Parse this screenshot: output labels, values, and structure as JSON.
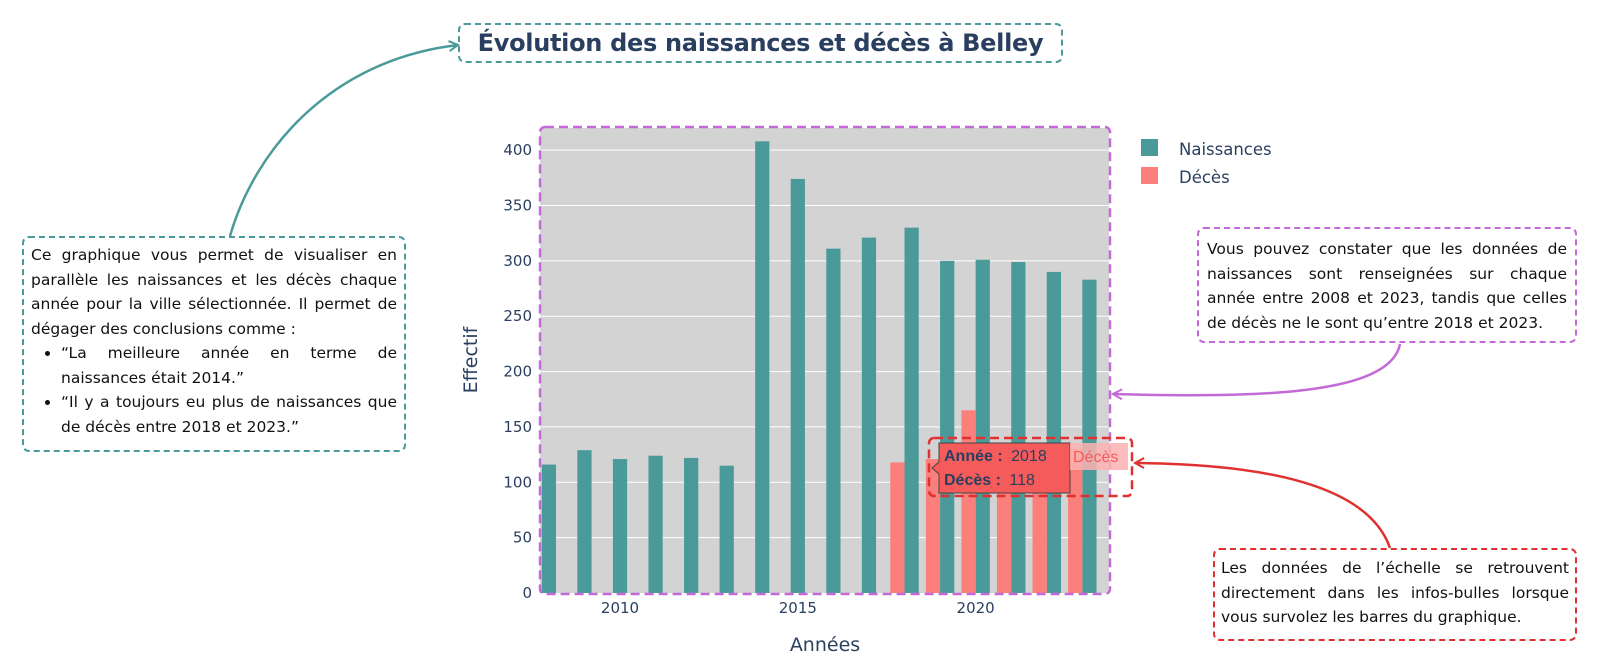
{
  "title": "Évolution des naissances et décès à Belley",
  "annotations": {
    "left": {
      "text": "Ce graphique vous permet de visualiser en parallèle les naissances et les décès chaque année pour la ville sélectionnée. Il permet de dégager des conclusions comme :",
      "bullets": [
        "“La meilleure année en terme de naissances était 2014.”",
        "“Il y a toujours eu plus de naissances que de décès entre 2018 et 2023.”"
      ]
    },
    "right_top": "Vous pouvez constater que les données de naissances sont renseignées sur chaque année entre 2008 et 2023, tandis que celles de décès ne le sont qu’entre 2018 et 2023.",
    "right_bottom": "Les données de l’échelle se retrouvent directement dans les infos-bulles lorsque vous survolez les barres du graphique."
  },
  "tooltip": {
    "year_label": "Année :",
    "year_value": "2018",
    "deaths_label": "Décès :",
    "deaths_value": "118",
    "series_tag": "Décès"
  },
  "colors": {
    "naissances": "#4a9a9a",
    "deces": "#fb7f7a",
    "plot_bg": "#d3d3d3",
    "teal_annotation": "#4a9a9a",
    "purple_annotation": "#c46ad8",
    "red_annotation": "#e03030",
    "tooltip_bg": "#f55b5b"
  },
  "chart_data": {
    "type": "bar",
    "xlabel": "Années",
    "ylabel": "Effectif",
    "xlim": [
      2007.75,
      2023.75
    ],
    "ylim": [
      0,
      420
    ],
    "yticks": [
      0,
      50,
      100,
      150,
      200,
      250,
      300,
      350,
      400
    ],
    "xticks": [
      2010,
      2015,
      2020
    ],
    "grid": true,
    "legend_position": "top-right",
    "series": [
      {
        "name": "Naissances",
        "x": [
          2008,
          2009,
          2010,
          2011,
          2012,
          2013,
          2014,
          2015,
          2016,
          2017,
          2018,
          2019,
          2020,
          2021,
          2022,
          2023
        ],
        "values": [
          116,
          129,
          121,
          124,
          122,
          115,
          408,
          374,
          311,
          321,
          330,
          300,
          301,
          299,
          290,
          283
        ]
      },
      {
        "name": "Décès",
        "x": [
          2018,
          2019,
          2020,
          2021,
          2022,
          2023
        ],
        "values": [
          118,
          121,
          165,
          127,
          120,
          130
        ]
      }
    ]
  }
}
